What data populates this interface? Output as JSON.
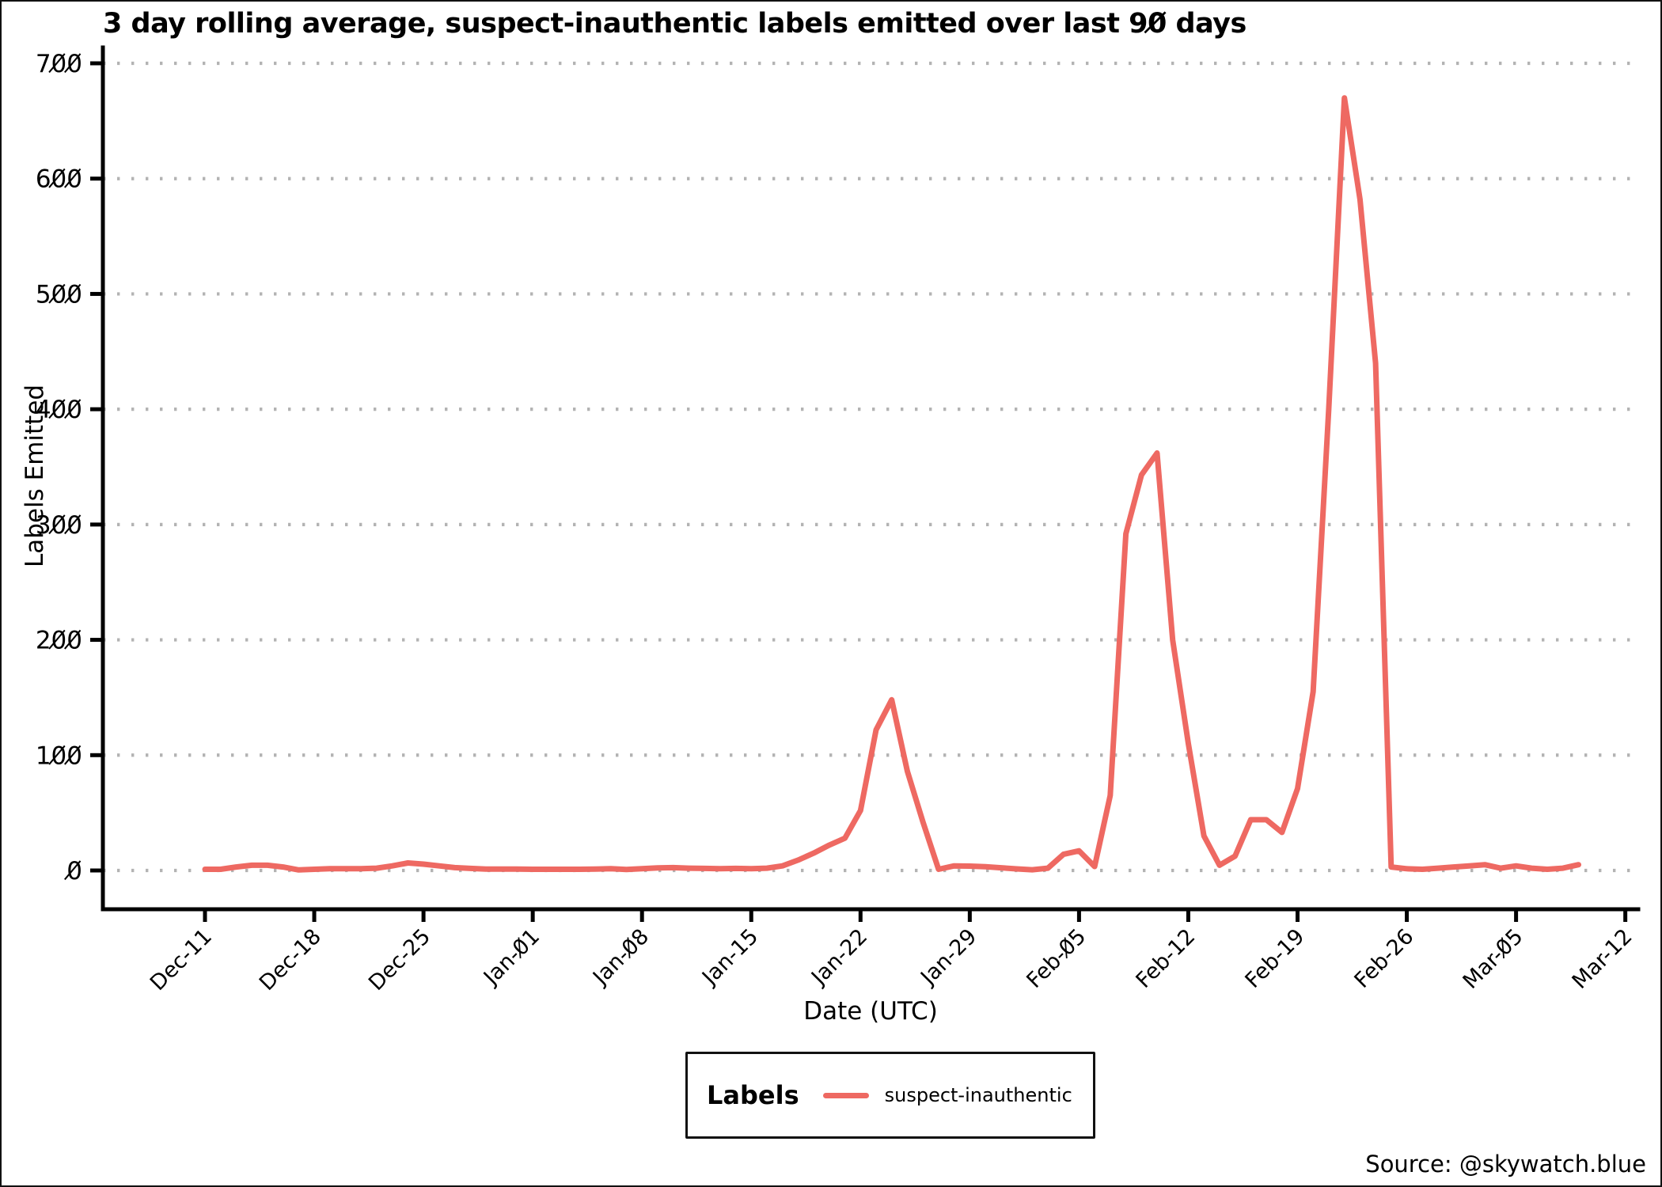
{
  "title": "3 day rolling average, suspect-inauthentic labels emitted over last 90 days",
  "axes": {
    "x_label": "Date (UTC)",
    "y_label": "Labels Emitted"
  },
  "legend": {
    "title": "Labels",
    "series_label": "suspect-inauthentic"
  },
  "source": "Source: @skywatch.blue",
  "colors": {
    "line": "#ee6962",
    "grid": "#b3b3b3",
    "axis": "#000000",
    "text": "#000000",
    "background": "#ffffff"
  },
  "chart_data": {
    "type": "line",
    "title": "3 day rolling average, suspect-inauthentic labels emitted over last 90 days",
    "xlabel": "Date (UTC)",
    "ylabel": "Labels Emitted",
    "ylim": [
      0,
      700
    ],
    "y_ticks": [
      0,
      100,
      200,
      300,
      400,
      500,
      600,
      700
    ],
    "x_tick_labels": [
      "Dec-11",
      "Dec-18",
      "Dec-25",
      "Jan-01",
      "Jan-08",
      "Jan-15",
      "Jan-22",
      "Jan-29",
      "Feb-05",
      "Feb-12",
      "Feb-19",
      "Feb-26",
      "Mar-05",
      "Mar-12"
    ],
    "grid": "horizontal-dotted",
    "legend_position": "bottom-center",
    "series": [
      {
        "name": "suspect-inauthentic",
        "color": "#ee6962",
        "x": [
          "Dec-11",
          "Dec-12",
          "Dec-13",
          "Dec-14",
          "Dec-15",
          "Dec-16",
          "Dec-17",
          "Dec-18",
          "Dec-19",
          "Dec-20",
          "Dec-21",
          "Dec-22",
          "Dec-23",
          "Dec-24",
          "Dec-25",
          "Dec-26",
          "Dec-27",
          "Dec-28",
          "Dec-29",
          "Dec-30",
          "Dec-31",
          "Jan-01",
          "Jan-02",
          "Jan-03",
          "Jan-04",
          "Jan-05",
          "Jan-06",
          "Jan-07",
          "Jan-08",
          "Jan-09",
          "Jan-10",
          "Jan-11",
          "Jan-12",
          "Jan-13",
          "Jan-14",
          "Jan-15",
          "Jan-16",
          "Jan-17",
          "Jan-18",
          "Jan-19",
          "Jan-20",
          "Jan-21",
          "Jan-22",
          "Jan-23",
          "Jan-24",
          "Jan-25",
          "Jan-26",
          "Jan-27",
          "Jan-28",
          "Jan-29",
          "Jan-30",
          "Jan-31",
          "Feb-01",
          "Feb-02",
          "Feb-03",
          "Feb-04",
          "Feb-05",
          "Feb-06",
          "Feb-07",
          "Feb-08",
          "Feb-09",
          "Feb-10",
          "Feb-11",
          "Feb-12",
          "Feb-13",
          "Feb-14",
          "Feb-15",
          "Feb-16",
          "Feb-17",
          "Feb-18",
          "Feb-19",
          "Feb-20",
          "Feb-21",
          "Feb-22",
          "Feb-23",
          "Feb-24",
          "Feb-25",
          "Feb-26",
          "Feb-27",
          "Feb-28",
          "Mar-01",
          "Mar-02",
          "Mar-03",
          "Mar-04",
          "Mar-05",
          "Mar-06",
          "Mar-07",
          "Mar-08",
          "Mar-09"
        ],
        "values": [
          1,
          1,
          3,
          4.5,
          4.5,
          3,
          0.5,
          1,
          1.5,
          1.5,
          1.5,
          2,
          4,
          6.5,
          5.5,
          4,
          2.5,
          1.8,
          1.2,
          1.2,
          1.2,
          1,
          1,
          1,
          1,
          1.2,
          1.5,
          0.8,
          1.5,
          2.2,
          2.5,
          2,
          1.8,
          1.5,
          1.8,
          1.5,
          2,
          4,
          9,
          15,
          22,
          28,
          52,
          122,
          148,
          86,
          42,
          1,
          4,
          3.8,
          3.2,
          2.3,
          1.4,
          0.6,
          2,
          14,
          17,
          3.4,
          65,
          292,
          343,
          362,
          200,
          110,
          30,
          4.5,
          12.5,
          44,
          44,
          33,
          71,
          155,
          400,
          670,
          582,
          440,
          3,
          1.5,
          1,
          2,
          3,
          4,
          5,
          2,
          4,
          2,
          1,
          2,
          5
        ]
      }
    ]
  }
}
